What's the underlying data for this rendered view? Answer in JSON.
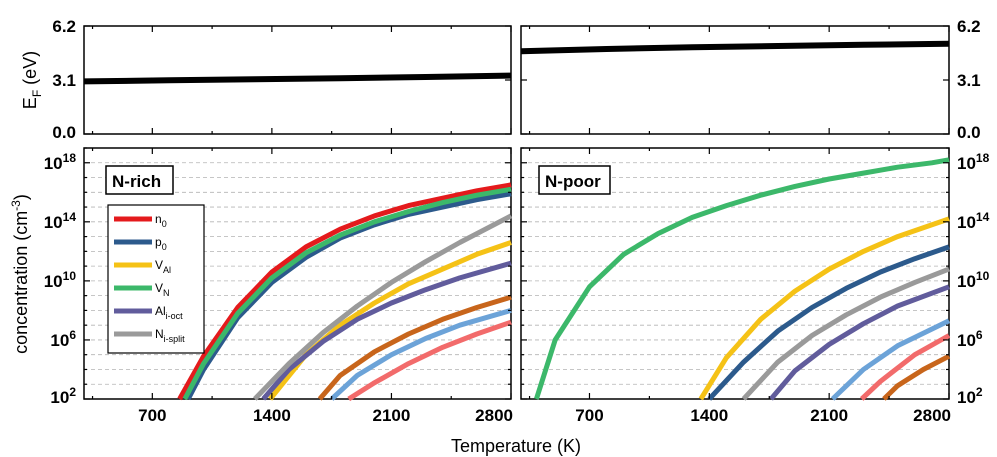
{
  "chart_data": [
    {
      "type": "line",
      "panel": "top-left",
      "ylabel": "E",
      "ylabel_sub": "F",
      "ylabel_unit": " (eV)",
      "ylim": [
        0,
        6.2
      ],
      "yticks": [
        "0.0",
        "3.1",
        "6.2"
      ],
      "xlim": [
        300,
        2800
      ],
      "series": [
        {
          "color": "#000000",
          "x": [
            300,
            800,
            1300,
            1800,
            2300,
            2800
          ],
          "y": [
            3.02,
            3.08,
            3.14,
            3.2,
            3.27,
            3.35
          ]
        }
      ]
    },
    {
      "type": "line",
      "panel": "top-right",
      "ylim": [
        0,
        6.2
      ],
      "yticks": [
        "0.0",
        "3.1",
        "6.2"
      ],
      "xlim": [
        300,
        2800
      ],
      "series": [
        {
          "color": "#000000",
          "x": [
            300,
            800,
            1300,
            1800,
            2300,
            2800
          ],
          "y": [
            4.75,
            4.88,
            4.98,
            5.05,
            5.12,
            5.18
          ]
        }
      ]
    },
    {
      "type": "line",
      "panel": "bottom-left",
      "annotation": "N-rich",
      "ylabel": "concentration (cm",
      "ylabel_sup": "-3",
      "ylabel_close": ")",
      "y_scale": "log",
      "ylim": [
        100,
        1e+19
      ],
      "ytick_values": [
        2,
        6,
        10,
        14,
        18
      ],
      "xlabel": "Temperature (K)",
      "xlim": [
        300,
        2800
      ],
      "xticks": [
        "700",
        "1400",
        "2100",
        "2800"
      ],
      "grid": true,
      "legend": "left",
      "series": [
        {
          "name": "n",
          "sub": "0",
          "color": "#e41a1c",
          "x": [
            860,
            1000,
            1200,
            1400,
            1600,
            1800,
            2000,
            2200,
            2400,
            2600,
            2800
          ],
          "log10_y": [
            2,
            4.9,
            8.2,
            10.6,
            12.3,
            13.5,
            14.4,
            15.1,
            15.6,
            16.1,
            16.5
          ]
        },
        {
          "name": "p",
          "sub": "0",
          "color": "#2c5a8c",
          "x": [
            910,
            1000,
            1200,
            1400,
            1600,
            1800,
            2000,
            2200,
            2400,
            2600,
            2800
          ],
          "log10_y": [
            2,
            4.0,
            7.5,
            9.9,
            11.6,
            12.9,
            13.8,
            14.5,
            15.0,
            15.5,
            15.9
          ]
        },
        {
          "name": "V",
          "sub": "Al",
          "color": "#f5c216",
          "x": [
            1390,
            1600,
            1800,
            2000,
            2200,
            2400,
            2600,
            2800
          ],
          "log10_y": [
            2,
            5.0,
            7.0,
            8.5,
            9.8,
            10.8,
            11.8,
            12.6
          ]
        },
        {
          "name": "V",
          "sub": "N",
          "color": "#3cb86a",
          "x": [
            890,
            1000,
            1200,
            1400,
            1600,
            1800,
            2000,
            2200,
            2400,
            2600,
            2800
          ],
          "log10_y": [
            2,
            4.4,
            7.8,
            10.2,
            11.9,
            13.1,
            14.0,
            14.7,
            15.3,
            15.8,
            16.2
          ]
        },
        {
          "name": "Al",
          "sub": "i-oct",
          "color": "#615c9c",
          "x": [
            1350,
            1500,
            1700,
            1900,
            2100,
            2300,
            2500,
            2800
          ],
          "log10_y": [
            2,
            4.0,
            5.9,
            7.4,
            8.5,
            9.4,
            10.2,
            11.2
          ]
        },
        {
          "name": "N",
          "sub": "i-split",
          "color": "#9a9a9a",
          "x": [
            1300,
            1500,
            1700,
            1900,
            2100,
            2300,
            2500,
            2800
          ],
          "log10_y": [
            2,
            4.4,
            6.5,
            8.3,
            9.9,
            11.3,
            12.6,
            14.4
          ]
        },
        {
          "color": "#c8651b",
          "x": [
            1680,
            1800,
            2000,
            2200,
            2400,
            2600,
            2800
          ],
          "log10_y": [
            2,
            3.6,
            5.2,
            6.4,
            7.4,
            8.2,
            8.9
          ]
        },
        {
          "color": "#6ca3d8",
          "x": [
            1750,
            1900,
            2100,
            2300,
            2500,
            2800
          ],
          "log10_y": [
            2,
            3.6,
            5.0,
            6.1,
            7.0,
            8.0
          ]
        },
        {
          "color": "#f26b6b",
          "x": [
            1850,
            2000,
            2200,
            2400,
            2600,
            2800
          ],
          "log10_y": [
            2,
            3.1,
            4.4,
            5.5,
            6.4,
            7.2
          ]
        }
      ]
    },
    {
      "type": "line",
      "panel": "bottom-right",
      "annotation": "N-poor",
      "y_scale": "log",
      "ylim": [
        100,
        1e+19
      ],
      "ytick_values": [
        2,
        6,
        10,
        14,
        18
      ],
      "xlim": [
        300,
        2800
      ],
      "xticks": [
        "700",
        "1400",
        "2100",
        "2800"
      ],
      "grid": true,
      "series": [
        {
          "color": "#3cb86a",
          "x": [
            390,
            500,
            700,
            900,
            1100,
            1300,
            1500,
            1700,
            1900,
            2100,
            2300,
            2500,
            2700,
            2800
          ],
          "log10_y": [
            2,
            6.0,
            9.6,
            11.8,
            13.2,
            14.3,
            15.1,
            15.8,
            16.4,
            16.9,
            17.3,
            17.7,
            18.0,
            18.2
          ]
        },
        {
          "color": "#f5c216",
          "x": [
            1350,
            1500,
            1700,
            1900,
            2100,
            2300,
            2500,
            2800
          ],
          "log10_y": [
            2,
            4.8,
            7.4,
            9.3,
            10.8,
            12.0,
            13.0,
            14.2
          ]
        },
        {
          "color": "#2c5a8c",
          "x": [
            1400,
            1600,
            1800,
            2000,
            2200,
            2400,
            2600,
            2800
          ],
          "log10_y": [
            2,
            4.5,
            6.6,
            8.2,
            9.5,
            10.6,
            11.5,
            12.3
          ]
        },
        {
          "color": "#9a9a9a",
          "x": [
            1600,
            1800,
            2000,
            2200,
            2400,
            2600,
            2800
          ],
          "log10_y": [
            2,
            4.5,
            6.3,
            7.7,
            8.9,
            9.9,
            10.8
          ]
        },
        {
          "color": "#615c9c",
          "x": [
            1760,
            1900,
            2100,
            2300,
            2500,
            2800
          ],
          "log10_y": [
            2,
            3.9,
            5.7,
            7.1,
            8.3,
            9.6
          ]
        },
        {
          "color": "#6ca3d8",
          "x": [
            2120,
            2300,
            2500,
            2800
          ],
          "log10_y": [
            2,
            4.0,
            5.6,
            7.3
          ]
        },
        {
          "color": "#f26b6b",
          "x": [
            2290,
            2400,
            2600,
            2800
          ],
          "log10_y": [
            2,
            3.2,
            5.0,
            6.3
          ]
        },
        {
          "color": "#c8651b",
          "x": [
            2420,
            2500,
            2650,
            2800
          ],
          "log10_y": [
            2,
            2.9,
            4.0,
            4.9
          ]
        }
      ]
    }
  ]
}
